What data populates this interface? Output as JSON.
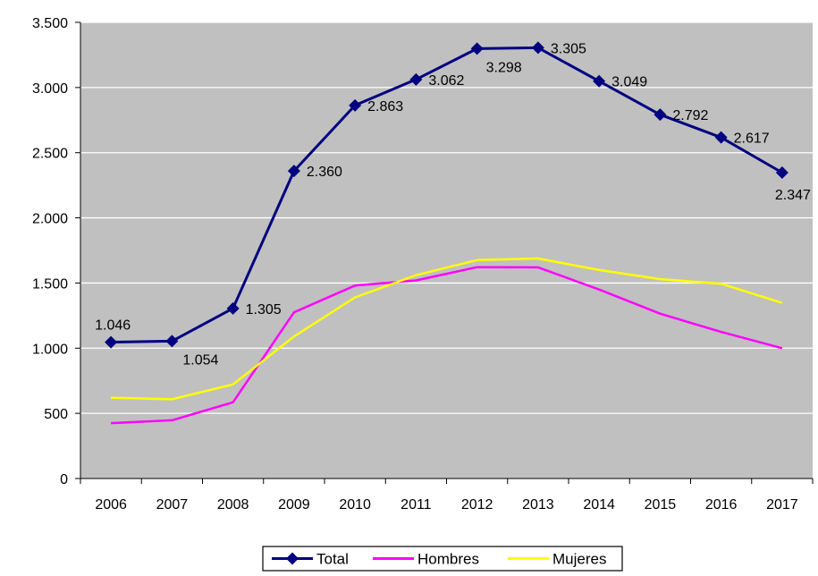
{
  "chart_data": {
    "type": "line",
    "title": "",
    "xlabel": "",
    "ylabel": "",
    "categories": [
      "2006",
      "2007",
      "2008",
      "2009",
      "2010",
      "2011",
      "2012",
      "2013",
      "2014",
      "2015",
      "2016",
      "2017"
    ],
    "ylim": [
      0,
      3500
    ],
    "yticks": [
      0,
      500,
      1000,
      1500,
      2000,
      2500,
      3000,
      3500
    ],
    "ytick_labels": [
      "0",
      "500",
      "1.000",
      "1.500",
      "2.000",
      "2.500",
      "3.000",
      "3.500"
    ],
    "grid": true,
    "legend_position": "bottom",
    "colors": {
      "plot_background": "#C0C0C0",
      "gridline": "#ffffff",
      "total": "#000080",
      "hombres": "#FF00FF",
      "mujeres": "#FFFF00"
    },
    "series": [
      {
        "name": "Total",
        "values": [
          1046,
          1054,
          1305,
          2360,
          2863,
          3062,
          3298,
          3305,
          3049,
          2792,
          2617,
          2347
        ],
        "labels": [
          "1.046",
          "1.054",
          "1.305",
          "2.360",
          "2.863",
          "3.062",
          "3.298",
          "3.305",
          "3.049",
          "2.792",
          "2.617",
          "2.347"
        ],
        "marker": "diamond"
      },
      {
        "name": "Hombres",
        "values": [
          425,
          447,
          585,
          1275,
          1480,
          1520,
          1622,
          1620,
          1450,
          1265,
          1125,
          1000
        ]
      },
      {
        "name": "Mujeres",
        "values": [
          620,
          608,
          722,
          1090,
          1390,
          1560,
          1676,
          1688,
          1600,
          1530,
          1495,
          1347
        ]
      }
    ]
  }
}
